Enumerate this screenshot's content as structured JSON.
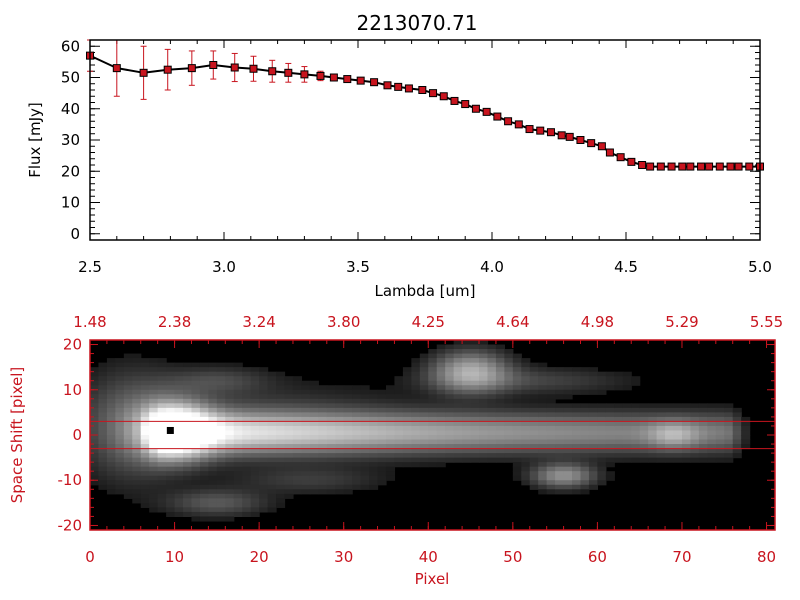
{
  "chart_data": [
    {
      "type": "line",
      "title": "2213070.71",
      "xlabel": "Lambda [um]",
      "ylabel": "Flux [mJy]",
      "xlim": [
        2.5,
        5.0
      ],
      "ylim": [
        -2,
        62
      ],
      "xticks": [
        "2.5",
        "3.0",
        "3.5",
        "4.0",
        "4.5",
        "5.0"
      ],
      "yticks": [
        "0",
        "10",
        "20",
        "30",
        "40",
        "50",
        "60"
      ],
      "colors": {
        "line": "#000000",
        "marker": "#c8141e",
        "errorbar": "#c8141e"
      },
      "series": [
        {
          "x": [
            2.5,
            2.6,
            2.7,
            2.79,
            2.88,
            2.96,
            3.04,
            3.11,
            3.18,
            3.24,
            3.3,
            3.36,
            3.41,
            3.46,
            3.51,
            3.56,
            3.61,
            3.65,
            3.69,
            3.74,
            3.78,
            3.82,
            3.86,
            3.9,
            3.94,
            3.98,
            4.02,
            4.06,
            4.1,
            4.14,
            4.18,
            4.22,
            4.26,
            4.29,
            4.33,
            4.37,
            4.41,
            4.44,
            4.48,
            4.52,
            4.56,
            4.59,
            4.63,
            4.67,
            4.71,
            4.74,
            4.78,
            4.81,
            4.85,
            4.89,
            4.92,
            4.96,
            5.0
          ],
          "y": [
            57,
            53,
            51.5,
            52.5,
            53,
            54,
            53.2,
            52.8,
            52,
            51.5,
            51,
            50.5,
            50,
            49.5,
            49,
            48.5,
            47.5,
            47,
            46.5,
            46,
            45,
            44,
            42.5,
            41.5,
            40,
            39,
            37.5,
            36,
            35,
            33.5,
            33,
            32.5,
            31.5,
            31,
            30,
            29,
            28,
            26,
            24.5,
            23,
            22,
            21.5,
            21.5,
            21.5,
            21.5,
            21.5,
            21.5,
            21.5,
            21.5,
            21.5,
            21.5,
            21.5,
            21.5
          ],
          "err": [
            5,
            9,
            8.5,
            6.5,
            5.5,
            4.5,
            4.5,
            4,
            3.5,
            3,
            2.5,
            1.5,
            1,
            1,
            1,
            1,
            1,
            1,
            1,
            1,
            1,
            1,
            1,
            1,
            1,
            1,
            1,
            1,
            1,
            1,
            1,
            1,
            1,
            1,
            1,
            1,
            1,
            1,
            1,
            1,
            1,
            1,
            1,
            1,
            1,
            1,
            1,
            1,
            1,
            1,
            1,
            1,
            1
          ]
        }
      ]
    },
    {
      "type": "heatmap",
      "xlabel": "Pixel",
      "ylabel": "Space Shift [pixel]",
      "xlim": [
        0,
        81
      ],
      "ylim": [
        -21,
        21
      ],
      "xticks": [
        "0",
        "10",
        "20",
        "30",
        "40",
        "50",
        "60",
        "70",
        "80"
      ],
      "yticks": [
        "-20",
        "-10",
        "0",
        "10",
        "20"
      ],
      "top_axis_ticks": [
        "1.48",
        "2.38",
        "3.24",
        "3.80",
        "4.25",
        "4.64",
        "4.98",
        "5.29",
        "5.55"
      ],
      "extraction_lines": [
        3,
        -3
      ],
      "peak_marker": {
        "x": 9.5,
        "y": 1
      },
      "colormap": "grayscale",
      "colors": {
        "axes": "#c8141e",
        "background": "#000000",
        "peak": "#000000"
      },
      "features": [
        {
          "kind": "trace",
          "x_start": 9,
          "x_end": 75,
          "center_y": 0.5,
          "width": 3,
          "peak": 1.0
        },
        {
          "kind": "blob",
          "x": 10,
          "y": 1,
          "sx": 3,
          "sy": 4,
          "peak": 1.0
        },
        {
          "kind": "blob",
          "x": 5,
          "y": 2,
          "sx": 4,
          "sy": 8,
          "peak": 0.25
        },
        {
          "kind": "blob",
          "x": 45,
          "y": 14,
          "sx": 3,
          "sy": 3,
          "peak": 0.55
        },
        {
          "kind": "blob",
          "x": 52,
          "y": 12,
          "sx": 8,
          "sy": 2,
          "peak": 0.15
        },
        {
          "kind": "blob",
          "x": 56,
          "y": -9,
          "sx": 2.5,
          "sy": 1.8,
          "peak": 0.45
        },
        {
          "kind": "blob",
          "x": 15,
          "y": -15,
          "sx": 4,
          "sy": 2,
          "peak": 0.22
        },
        {
          "kind": "blob",
          "x": 15,
          "y": 12,
          "sx": 4,
          "sy": 2,
          "peak": 0.15
        },
        {
          "kind": "blob",
          "x": 26,
          "y": -10,
          "sx": 6,
          "sy": 2,
          "peak": 0.12
        },
        {
          "kind": "blob",
          "x": 69,
          "y": 0,
          "sx": 2,
          "sy": 2,
          "peak": 0.3
        },
        {
          "kind": "blob",
          "x": 20,
          "y": 3,
          "sx": 12,
          "sy": 6,
          "peak": 0.12
        }
      ]
    }
  ]
}
